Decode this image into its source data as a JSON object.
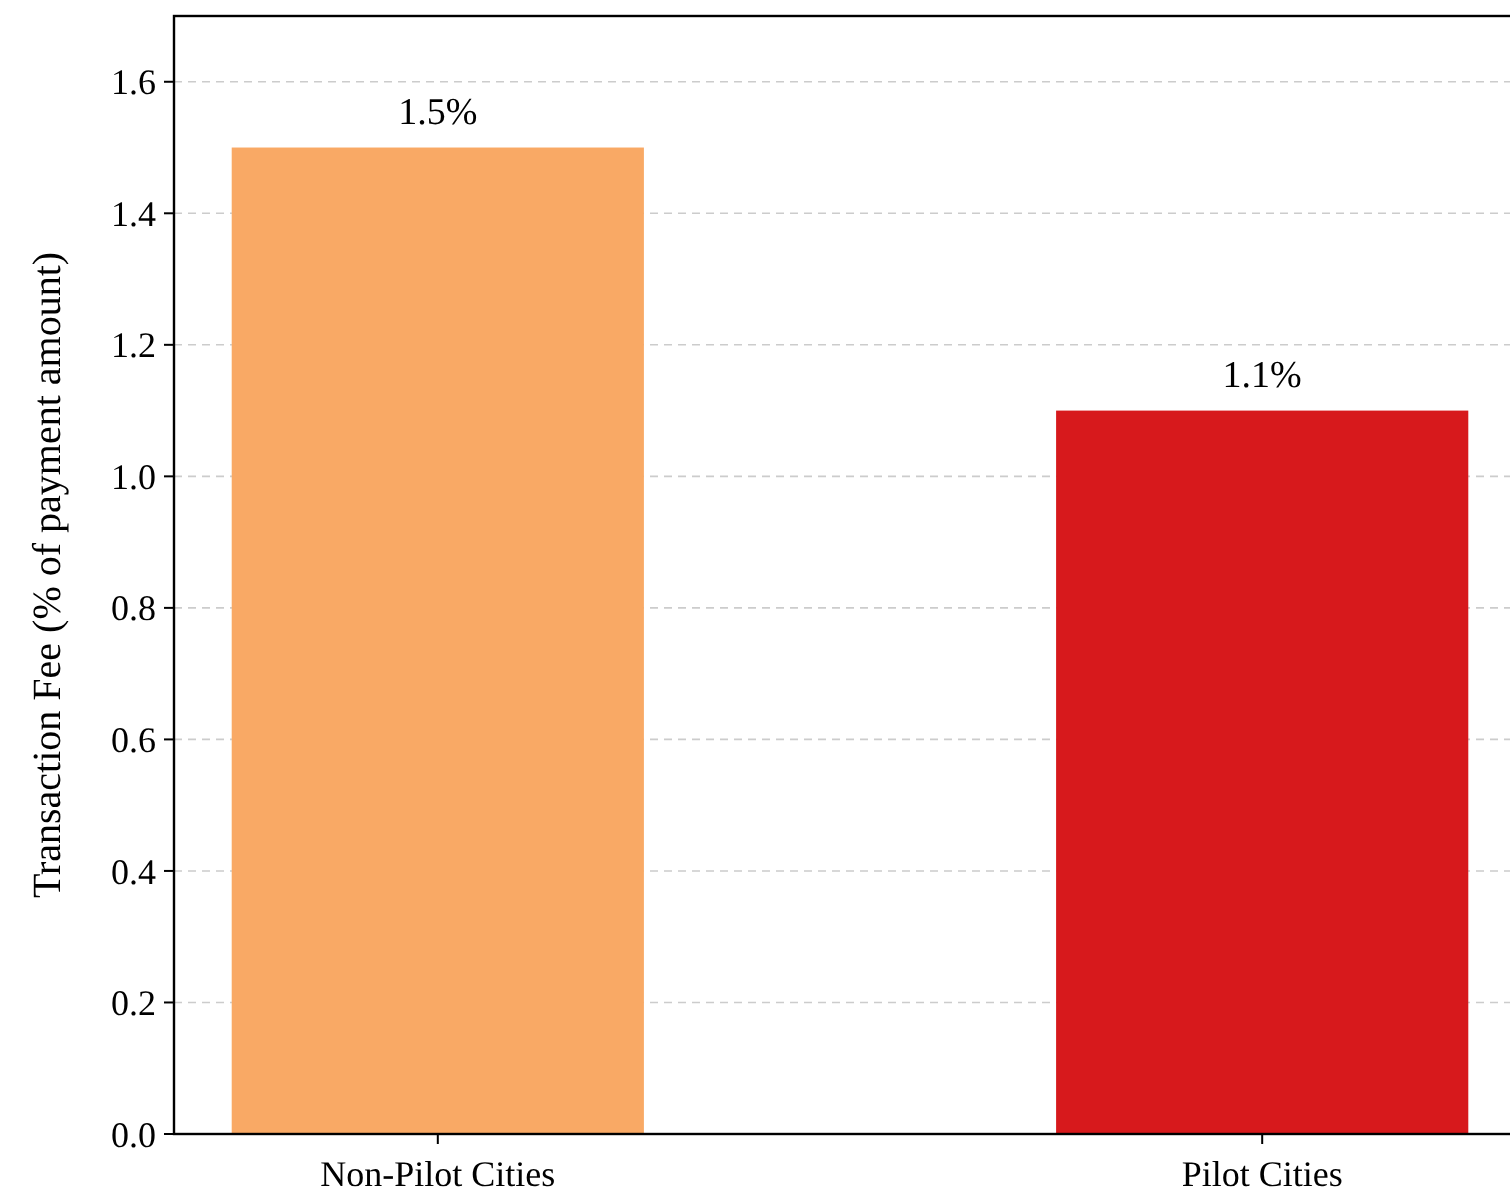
{
  "chart_data": {
    "type": "bar",
    "ylabel": "Transaction Fee (% of payment amount)",
    "categories": [
      "Non-Pilot Cities",
      "Pilot Cities"
    ],
    "values": [
      1.5,
      1.1
    ],
    "colors": [
      "#f9a965",
      "#d7191c"
    ],
    "value_labels": [
      "1.5%",
      "1.1%"
    ],
    "ylim": [
      0,
      1.7
    ],
    "yticks": [
      {
        "value": 0,
        "label": "0.0"
      },
      0.2,
      0.4,
      0.6,
      0.8,
      {
        "value": 1,
        "label": "1.0"
      },
      1.2,
      1.4,
      1.6
    ],
    "grid": "y"
  }
}
